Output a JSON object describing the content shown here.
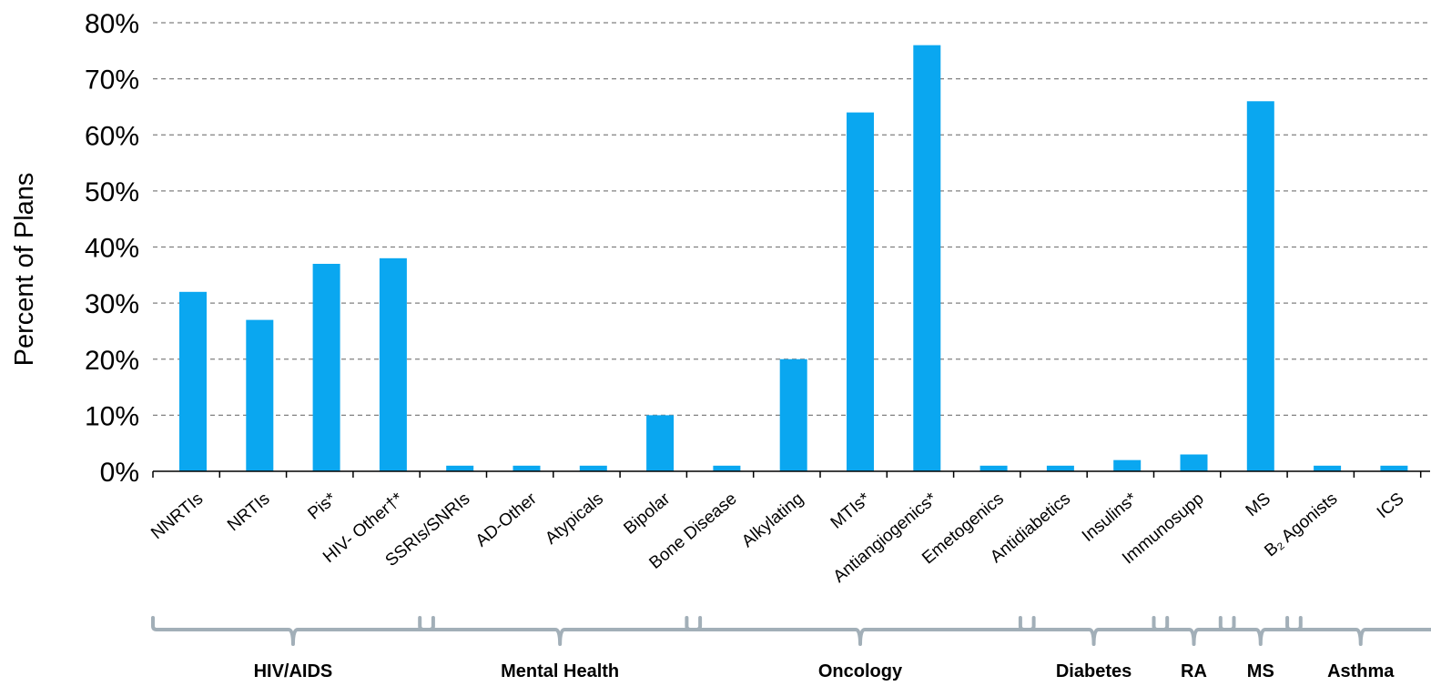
{
  "chart_data": {
    "type": "bar",
    "ylabel": "Percent of Plans",
    "ylim": [
      0,
      80
    ],
    "yticks": [
      "0%",
      "10%",
      "20%",
      "30%",
      "40%",
      "50%",
      "60%",
      "70%",
      "80%"
    ],
    "grid": true,
    "bar_color": "#0aa7f0",
    "categories": [
      "NNRTIs",
      "NRTIs",
      "Pis*",
      "HIV- Other†*",
      "SSRIs/SNRIs",
      "AD-Other",
      "Atypicals",
      "Bipolar",
      "Bone Disease",
      "Alkylating",
      "MTIs*",
      "Antiangiogenics*",
      "Emetogenics",
      "Antidiabetics",
      "Insulins*",
      "Immunosupp",
      "MS",
      "B₂ Agonists",
      "ICS"
    ],
    "values": [
      32,
      27,
      37,
      38,
      1,
      1,
      1,
      10,
      1,
      20,
      64,
      76,
      1,
      1,
      2,
      3,
      66,
      1,
      1
    ],
    "groups": [
      {
        "label": "HIV/AIDS",
        "start": 0,
        "end": 3
      },
      {
        "label": "Mental Health",
        "start": 4,
        "end": 7
      },
      {
        "label": "Oncology",
        "start": 8,
        "end": 12
      },
      {
        "label": "Diabetes",
        "start": 13,
        "end": 14
      },
      {
        "label": "RA",
        "start": 15,
        "end": 15
      },
      {
        "label": "MS",
        "start": 16,
        "end": 16
      },
      {
        "label": "Asthma",
        "start": 17,
        "end": 18
      }
    ]
  }
}
